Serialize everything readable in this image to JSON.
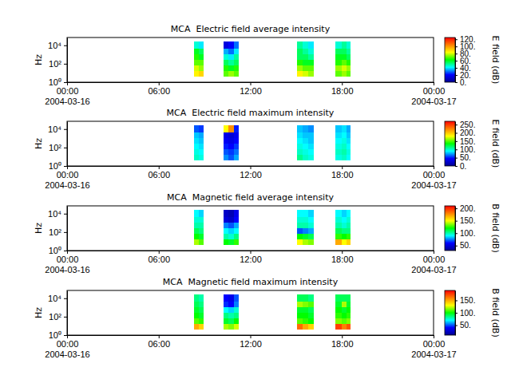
{
  "chart_data": [
    {
      "type": "heatmap",
      "title": "MCA  Electric field average intensity",
      "y_label": "Hz",
      "colorbar_label": "E field (dB)",
      "log": "y",
      "xlim": [
        "2004-03-16T00:00",
        "2004-03-17T00:00"
      ],
      "xticks": [
        {
          "value": "2004-03-16T00:00",
          "label": "00:00\n2004-03-16"
        },
        {
          "value": "2004-03-16T06:00",
          "label": "06:00"
        },
        {
          "value": "2004-03-16T12:00",
          "label": "12:00"
        },
        {
          "value": "2004-03-16T18:00",
          "label": "18:00"
        },
        {
          "value": "2004-03-17T00:00",
          "label": "00:00\n2004-03-17"
        }
      ],
      "ylim": [
        1,
        70000
      ],
      "yticks": [
        {
          "value": 1,
          "label": "10⁰"
        },
        {
          "value": 100,
          "label": "10²"
        },
        {
          "value": 10000,
          "label": "10⁴"
        }
      ],
      "x_bins": [
        "2004-03-16T08:20",
        "2004-03-16T08:38",
        "2004-03-16T08:55",
        "2004-03-16T10:15",
        "2004-03-16T10:35",
        "2004-03-16T10:55",
        "2004-03-16T11:15",
        "2004-03-16T15:05",
        "2004-03-16T15:27",
        "2004-03-16T15:48",
        "2004-03-16T16:10",
        "2004-03-16T17:35",
        "2004-03-16T17:58",
        "2004-03-16T18:17",
        "2004-03-16T18:35"
      ],
      "y_bins": [
        4,
        16,
        60,
        250,
        1000,
        4000,
        25000
      ],
      "z": [
        [
          85,
          80,
          70,
          65,
          60,
          45
        ],
        [
          90,
          75,
          70,
          60,
          55,
          40
        ],
        [
          null,
          null,
          null,
          null,
          null,
          null
        ],
        [
          70,
          65,
          55,
          45,
          35,
          15
        ],
        [
          75,
          60,
          50,
          40,
          30,
          20
        ],
        [
          70,
          65,
          55,
          50,
          40,
          30
        ],
        [
          null,
          null,
          null,
          null,
          null,
          null
        ],
        [
          85,
          75,
          65,
          55,
          55,
          50
        ],
        [
          80,
          70,
          60,
          55,
          50,
          45
        ],
        [
          75,
          70,
          60,
          50,
          45,
          40
        ],
        [
          null,
          null,
          null,
          null,
          null,
          null
        ],
        [
          70,
          75,
          65,
          60,
          55,
          45
        ],
        [
          75,
          80,
          70,
          60,
          55,
          50
        ],
        [
          70,
          75,
          65,
          55,
          50,
          45
        ]
      ],
      "zlim": [
        0,
        125
      ],
      "zticks": [
        {
          "value": 0,
          "label": "0."
        },
        {
          "value": 20,
          "label": "20."
        },
        {
          "value": 40,
          "label": "40."
        },
        {
          "value": 60,
          "label": "60."
        },
        {
          "value": 80,
          "label": "80."
        },
        {
          "value": 100,
          "label": "100."
        },
        {
          "value": 120,
          "label": "120."
        }
      ]
    },
    {
      "type": "heatmap",
      "title": "MCA  Electric field maximum intensity",
      "y_label": "Hz",
      "colorbar_label": "E field (dB)",
      "log": "y",
      "xlim": [
        "2004-03-16T00:00",
        "2004-03-17T00:00"
      ],
      "xticks": [
        {
          "value": "2004-03-16T00:00",
          "label": "00:00\n2004-03-16"
        },
        {
          "value": "2004-03-16T06:00",
          "label": "06:00"
        },
        {
          "value": "2004-03-16T12:00",
          "label": "12:00"
        },
        {
          "value": "2004-03-16T18:00",
          "label": "18:00"
        },
        {
          "value": "2004-03-17T00:00",
          "label": "00:00\n2004-03-17"
        }
      ],
      "ylim": [
        1,
        70000
      ],
      "yticks": [
        {
          "value": 1,
          "label": "10⁰"
        },
        {
          "value": 100,
          "label": "10²"
        },
        {
          "value": 10000,
          "label": "10⁴"
        }
      ],
      "x_bins": [
        "2004-03-16T08:20",
        "2004-03-16T08:38",
        "2004-03-16T08:55",
        "2004-03-16T10:15",
        "2004-03-16T10:35",
        "2004-03-16T10:55",
        "2004-03-16T11:15",
        "2004-03-16T15:05",
        "2004-03-16T15:27",
        "2004-03-16T15:48",
        "2004-03-16T16:10",
        "2004-03-16T17:35",
        "2004-03-16T17:58",
        "2004-03-16T18:17",
        "2004-03-16T18:35"
      ],
      "y_bins": [
        4,
        16,
        60,
        250,
        1000,
        4000,
        25000
      ],
      "z": [
        [
          100,
          95,
          90,
          85,
          80,
          60
        ],
        [
          95,
          90,
          85,
          80,
          75,
          55
        ],
        [
          null,
          null,
          null,
          null,
          null,
          null
        ],
        [
          70,
          60,
          50,
          40,
          35,
          180
        ],
        [
          60,
          55,
          45,
          35,
          30,
          220
        ],
        [
          75,
          65,
          55,
          45,
          40,
          50
        ],
        [
          null,
          null,
          null,
          null,
          null,
          null
        ],
        [
          110,
          100,
          95,
          90,
          85,
          80
        ],
        [
          100,
          95,
          90,
          85,
          80,
          75
        ],
        [
          95,
          90,
          85,
          80,
          80,
          70
        ],
        [
          null,
          null,
          null,
          null,
          null,
          null
        ],
        [
          95,
          100,
          95,
          90,
          85,
          80
        ],
        [
          100,
          105,
          100,
          95,
          90,
          85
        ],
        [
          90,
          95,
          90,
          85,
          80,
          75
        ]
      ],
      "zlim": [
        0,
        270
      ],
      "zticks": [
        {
          "value": 0,
          "label": "0."
        },
        {
          "value": 50,
          "label": "50."
        },
        {
          "value": 100,
          "label": "100."
        },
        {
          "value": 150,
          "label": "150."
        },
        {
          "value": 200,
          "label": "200."
        },
        {
          "value": 250,
          "label": "250."
        }
      ]
    },
    {
      "type": "heatmap",
      "title": "MCA  Magnetic field average intensity",
      "y_label": "Hz",
      "colorbar_label": "B field (dB)",
      "log": "y",
      "xlim": [
        "2004-03-16T00:00",
        "2004-03-17T00:00"
      ],
      "xticks": [
        {
          "value": "2004-03-16T00:00",
          "label": "00:00\n2004-03-16"
        },
        {
          "value": "2004-03-16T06:00",
          "label": "06:00"
        },
        {
          "value": "2004-03-16T12:00",
          "label": "12:00"
        },
        {
          "value": "2004-03-16T18:00",
          "label": "18:00"
        },
        {
          "value": "2004-03-17T00:00",
          "label": "00:00\n2004-03-17"
        }
      ],
      "ylim": [
        1,
        70000
      ],
      "yticks": [
        {
          "value": 1,
          "label": "10⁰"
        },
        {
          "value": 100,
          "label": "10²"
        },
        {
          "value": 10000,
          "label": "10⁴"
        }
      ],
      "x_bins": [
        "2004-03-16T08:20",
        "2004-03-16T08:38",
        "2004-03-16T08:55",
        "2004-03-16T10:15",
        "2004-03-16T10:35",
        "2004-03-16T10:55",
        "2004-03-16T11:15",
        "2004-03-16T15:05",
        "2004-03-16T15:27",
        "2004-03-16T15:48",
        "2004-03-16T16:10",
        "2004-03-16T17:35",
        "2004-03-16T17:58",
        "2004-03-16T18:17",
        "2004-03-16T18:35"
      ],
      "y_bins": [
        4,
        16,
        60,
        250,
        1000,
        4000,
        25000
      ],
      "z": [
        [
          140,
          120,
          110,
          100,
          95,
          90
        ],
        [
          130,
          115,
          105,
          100,
          95,
          85
        ],
        [
          null,
          null,
          null,
          null,
          null,
          null
        ],
        [
          120,
          100,
          90,
          75,
          50,
          45
        ],
        [
          115,
          95,
          85,
          70,
          45,
          40
        ],
        [
          125,
          105,
          90,
          80,
          60,
          55
        ],
        [
          null,
          null,
          null,
          null,
          null,
          null
        ],
        [
          150,
          120,
          70,
          100,
          95,
          90
        ],
        [
          140,
          115,
          75,
          100,
          95,
          90
        ],
        [
          135,
          110,
          80,
          95,
          90,
          85
        ],
        [
          null,
          null,
          null,
          null,
          null,
          null
        ],
        [
          170,
          125,
          110,
          100,
          95,
          90
        ],
        [
          150,
          120,
          105,
          95,
          90,
          85
        ],
        [
          160,
          125,
          105,
          100,
          95,
          90
        ]
      ],
      "zlim": [
        30,
        210
      ],
      "zticks": [
        {
          "value": 50,
          "label": "50."
        },
        {
          "value": 100,
          "label": "100."
        },
        {
          "value": 150,
          "label": "150."
        },
        {
          "value": 200,
          "label": "200."
        }
      ]
    },
    {
      "type": "heatmap",
      "title": "MCA  Magnetic field maximum intensity",
      "y_label": "Hz",
      "colorbar_label": "B field (dB)",
      "log": "y",
      "xlim": [
        "2004-03-16T00:00",
        "2004-03-17T00:00"
      ],
      "xticks": [
        {
          "value": "2004-03-16T00:00",
          "label": "00:00\n2004-03-16"
        },
        {
          "value": "2004-03-16T06:00",
          "label": "06:00"
        },
        {
          "value": "2004-03-16T12:00",
          "label": "12:00"
        },
        {
          "value": "2004-03-16T18:00",
          "label": "18:00"
        },
        {
          "value": "2004-03-17T00:00",
          "label": "00:00\n2004-03-17"
        }
      ],
      "ylim": [
        1,
        70000
      ],
      "yticks": [
        {
          "value": 1,
          "label": "10⁰"
        },
        {
          "value": 100,
          "label": "10²"
        },
        {
          "value": 10000,
          "label": "10⁴"
        }
      ],
      "x_bins": [
        "2004-03-16T08:20",
        "2004-03-16T08:38",
        "2004-03-16T08:55",
        "2004-03-16T10:15",
        "2004-03-16T10:35",
        "2004-03-16T10:55",
        "2004-03-16T11:15",
        "2004-03-16T15:05",
        "2004-03-16T15:27",
        "2004-03-16T15:48",
        "2004-03-16T16:10",
        "2004-03-16T17:35",
        "2004-03-16T17:58",
        "2004-03-16T18:17",
        "2004-03-16T18:35"
      ],
      "y_bins": [
        4,
        16,
        60,
        250,
        1000,
        4000,
        25000
      ],
      "z": [
        [
          150,
          110,
          100,
          95,
          90,
          85
        ],
        [
          140,
          105,
          95,
          90,
          85,
          80
        ],
        [
          null,
          null,
          null,
          null,
          null,
          null
        ],
        [
          120,
          95,
          85,
          70,
          45,
          40
        ],
        [
          115,
          90,
          80,
          65,
          40,
          35
        ],
        [
          125,
          100,
          85,
          75,
          55,
          50
        ],
        [
          null,
          null,
          null,
          null,
          null,
          null
        ],
        [
          165,
          110,
          100,
          95,
          120,
          90
        ],
        [
          150,
          105,
          100,
          95,
          115,
          90
        ],
        [
          140,
          100,
          95,
          90,
          110,
          85
        ],
        [
          null,
          null,
          null,
          null,
          null,
          null
        ],
        [
          175,
          115,
          105,
          100,
          95,
          90
        ],
        [
          160,
          110,
          100,
          95,
          120,
          90
        ],
        [
          170,
          115,
          105,
          100,
          95,
          90
        ]
      ],
      "zlim": [
        10,
        190
      ],
      "zticks": [
        {
          "value": 50,
          "label": "50."
        },
        {
          "value": 100,
          "label": "100."
        },
        {
          "value": 150,
          "label": "150."
        }
      ]
    }
  ]
}
